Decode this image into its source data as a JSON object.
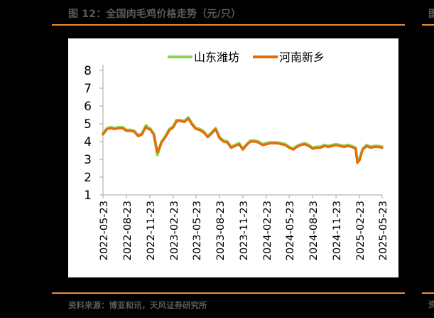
{
  "header": {
    "title": "图 12：全国肉毛鸡价格走势（元/只）"
  },
  "footer": {
    "source": "资料来源：博亚和讯，天风证券研究所"
  },
  "colors": {
    "accent_rule": "#f08a32",
    "series_shandong": "#92d050",
    "series_henan": "#e46c0a",
    "axis": "#a6a6a6",
    "text": "#000000",
    "caption": "#595959"
  },
  "chart_data": {
    "type": "line",
    "title": "",
    "xlabel": "",
    "ylabel": "",
    "ylim": [
      1,
      8
    ],
    "yticks": [
      1,
      2,
      3,
      4,
      5,
      6,
      7,
      8
    ],
    "grid": false,
    "legend_position": "top",
    "x_tick_labels": [
      "2022-05-23",
      "2022-08-23",
      "2022-11-23",
      "2023-02-23",
      "2023-05-23",
      "2023-08-23",
      "2023-11-23",
      "2024-02-23",
      "2024-05-23",
      "2024-08-23",
      "2024-11-23",
      "2025-02-23",
      "2025-05-23"
    ],
    "x": [
      "2022-05-23",
      "2022-06-08",
      "2022-06-23",
      "2022-07-08",
      "2022-07-23",
      "2022-08-08",
      "2022-08-23",
      "2022-09-08",
      "2022-09-23",
      "2022-10-08",
      "2022-10-23",
      "2022-11-08",
      "2022-11-16",
      "2022-11-23",
      "2022-12-08",
      "2022-12-23",
      "2023-01-08",
      "2023-01-23",
      "2023-02-08",
      "2023-02-23",
      "2023-03-08",
      "2023-03-23",
      "2023-04-08",
      "2023-04-23",
      "2023-05-08",
      "2023-05-23",
      "2023-06-08",
      "2023-06-23",
      "2023-07-08",
      "2023-07-23",
      "2023-08-08",
      "2023-08-23",
      "2023-09-08",
      "2023-09-23",
      "2023-10-08",
      "2023-10-23",
      "2023-11-08",
      "2023-11-23",
      "2023-12-08",
      "2023-12-23",
      "2024-01-08",
      "2024-01-23",
      "2024-02-08",
      "2024-02-23",
      "2024-03-08",
      "2024-03-23",
      "2024-04-08",
      "2024-04-23",
      "2024-05-08",
      "2024-05-23",
      "2024-06-08",
      "2024-06-23",
      "2024-07-08",
      "2024-07-23",
      "2024-08-08",
      "2024-08-23",
      "2024-09-08",
      "2024-09-23",
      "2024-10-08",
      "2024-10-23",
      "2024-11-08",
      "2024-11-23",
      "2024-12-08",
      "2024-12-23",
      "2025-01-08",
      "2025-01-23",
      "2025-02-08",
      "2025-02-15",
      "2025-02-23",
      "2025-03-08",
      "2025-03-23",
      "2025-04-08",
      "2025-04-23",
      "2025-05-08",
      "2025-05-23"
    ],
    "series": [
      {
        "name": "山东潍坊",
        "color": "#92d050",
        "values": [
          4.45,
          4.75,
          4.8,
          4.75,
          4.8,
          4.8,
          4.65,
          4.65,
          4.6,
          4.35,
          4.45,
          4.9,
          4.75,
          4.75,
          4.45,
          3.25,
          4.0,
          4.3,
          4.7,
          4.85,
          5.2,
          5.2,
          5.15,
          5.35,
          5.0,
          4.75,
          4.7,
          4.55,
          4.3,
          4.5,
          4.75,
          4.25,
          4.05,
          4.0,
          3.7,
          3.8,
          3.9,
          3.6,
          3.85,
          4.05,
          4.05,
          4.0,
          3.85,
          3.9,
          3.95,
          3.95,
          3.95,
          3.9,
          3.85,
          3.7,
          3.6,
          3.75,
          3.85,
          3.9,
          3.8,
          3.65,
          3.7,
          3.7,
          3.8,
          3.75,
          3.8,
          3.85,
          3.8,
          3.75,
          3.8,
          3.75,
          3.65,
          2.85,
          3.0,
          3.6,
          3.8,
          3.7,
          3.75,
          3.75,
          3.7
        ]
      },
      {
        "name": "河南新乡",
        "color": "#e46c0a",
        "values": [
          4.4,
          4.7,
          4.75,
          4.7,
          4.75,
          4.75,
          4.6,
          4.6,
          4.55,
          4.3,
          4.4,
          4.85,
          4.7,
          4.7,
          4.4,
          3.4,
          3.95,
          4.25,
          4.65,
          4.8,
          5.15,
          5.15,
          5.1,
          5.3,
          4.95,
          4.7,
          4.65,
          4.5,
          4.25,
          4.45,
          4.7,
          4.2,
          4.0,
          3.95,
          3.65,
          3.75,
          3.85,
          3.55,
          3.8,
          4.0,
          4.0,
          3.95,
          3.8,
          3.85,
          3.9,
          3.9,
          3.9,
          3.85,
          3.8,
          3.65,
          3.55,
          3.7,
          3.8,
          3.85,
          3.75,
          3.6,
          3.65,
          3.65,
          3.75,
          3.7,
          3.75,
          3.8,
          3.75,
          3.7,
          3.75,
          3.7,
          3.6,
          2.8,
          2.95,
          3.55,
          3.75,
          3.65,
          3.7,
          3.7,
          3.65
        ]
      }
    ]
  }
}
